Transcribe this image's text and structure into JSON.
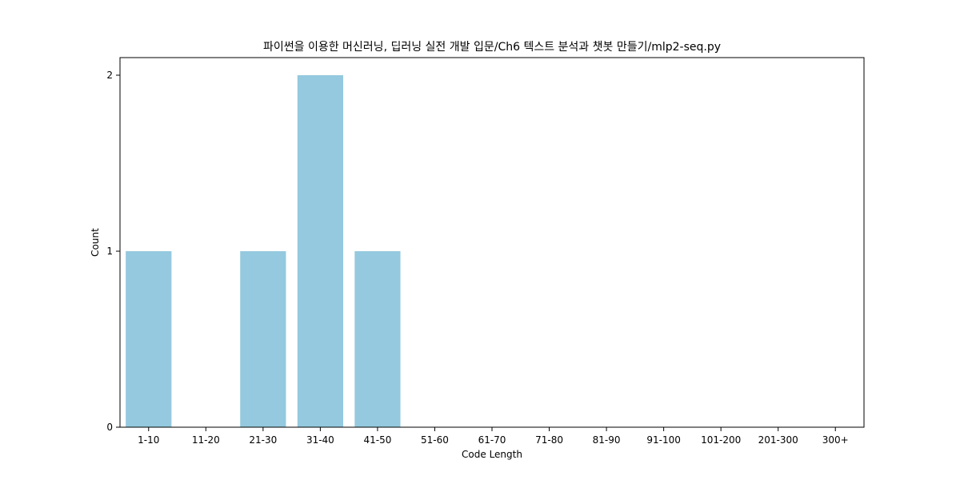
{
  "chart_data": {
    "type": "bar",
    "title": "파이썬을 이용한 머신러닝, 딥러닝 실전 개발 입문/Ch6 텍스트 분석과 챗봇 만들기/mlp2-seq.py",
    "xlabel": "Code Length",
    "ylabel": "Count",
    "categories": [
      "1-10",
      "11-20",
      "21-30",
      "31-40",
      "41-50",
      "51-60",
      "61-70",
      "71-80",
      "81-90",
      "91-100",
      "101-200",
      "201-300",
      "300+"
    ],
    "values": [
      1,
      0,
      1,
      2,
      1,
      0,
      0,
      0,
      0,
      0,
      0,
      0,
      0
    ],
    "yticks": [
      0,
      1,
      2
    ],
    "ylim": [
      0,
      2.1
    ],
    "grid": false,
    "legend": "none",
    "colors": {
      "bar": "#95c9df",
      "axis": "#000000"
    }
  }
}
